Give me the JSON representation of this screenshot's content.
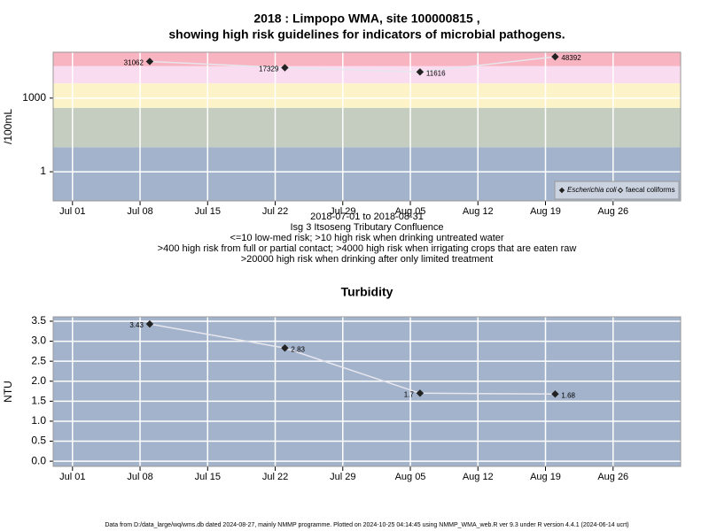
{
  "chart_data": [
    {
      "type": "line",
      "title": [
        "2018 : Limpopo WMA, site 100000815 ,",
        "showing high risk guidelines for indicators of microbial pathogens."
      ],
      "ylabel": "/100mL",
      "log_y": true,
      "ylim": [
        0.065,
        74000
      ],
      "yticks": [
        1,
        1000
      ],
      "xlim": [
        "2018-06-29",
        "2018-09-02"
      ],
      "xticks": [
        {
          "value": "2018-07-01",
          "label": "Jul 01"
        },
        {
          "value": "2018-07-08",
          "label": "Jul 08"
        },
        {
          "value": "2018-07-15",
          "label": "Jul 15"
        },
        {
          "value": "2018-07-22",
          "label": "Jul 22"
        },
        {
          "value": "2018-07-29",
          "label": "Jul 29"
        },
        {
          "value": "2018-08-05",
          "label": "Aug 05"
        },
        {
          "value": "2018-08-12",
          "label": "Aug 12"
        },
        {
          "value": "2018-08-19",
          "label": "Aug 19"
        },
        {
          "value": "2018-08-26",
          "label": "Aug 26"
        }
      ],
      "x": [
        "2018-07-09",
        "2018-07-23",
        "2018-08-06",
        "2018-08-20"
      ],
      "thresholds": [
        10,
        400,
        4000,
        20000
      ],
      "band_colors": [
        "#a3b3cc",
        "#c4cdc0",
        "#fcf4c8",
        "#f9dcf0",
        "#f8b4c0"
      ],
      "grid": true,
      "line_color": "#e6e6ee",
      "legend": "bottom-right",
      "series": [
        {
          "name": "Escherichia coli",
          "color": "#222222",
          "filled": true,
          "values": [
            31062,
            17329,
            11616,
            48392
          ]
        },
        {
          "name": "faecal coliforms",
          "color": "#222222",
          "filled": false,
          "values": [
            null,
            null,
            null,
            null
          ]
        }
      ],
      "notes": [
        "2018-07-01 to 2018-08-31",
        "Isg 3 Itsoseng Tributary Confluence",
        "<=10 low-med risk; >10 high risk when drinking untreated water",
        ">400 high risk from full or partial contact; >4000 high risk when irrigating crops that are eaten raw",
        ">20000 high risk when drinking after only limited treatment"
      ]
    },
    {
      "type": "line",
      "title": [
        "Turbidity"
      ],
      "ylabel": "NTU",
      "log_y": false,
      "ylim": [
        -0.13,
        3.61
      ],
      "yticks": [
        {
          "value": 0,
          "label": "0.0"
        },
        0.5,
        {
          "value": 1,
          "label": "1.0"
        },
        1.5,
        {
          "value": 2,
          "label": "2.0"
        },
        2.5,
        {
          "value": 3,
          "label": "3.0"
        },
        3.5
      ],
      "xlim": [
        "2018-06-29",
        "2018-09-02"
      ],
      "xticks": [
        {
          "value": "2018-07-01",
          "label": "Jul 01"
        },
        {
          "value": "2018-07-08",
          "label": "Jul 08"
        },
        {
          "value": "2018-07-15",
          "label": "Jul 15"
        },
        {
          "value": "2018-07-22",
          "label": "Jul 22"
        },
        {
          "value": "2018-07-29",
          "label": "Jul 29"
        },
        {
          "value": "2018-08-05",
          "label": "Aug 05"
        },
        {
          "value": "2018-08-12",
          "label": "Aug 12"
        },
        {
          "value": "2018-08-19",
          "label": "Aug 19"
        },
        {
          "value": "2018-08-26",
          "label": "Aug 26"
        }
      ],
      "x": [
        "2018-07-09",
        "2018-07-23",
        "2018-08-06",
        "2018-08-20"
      ],
      "background": "#a3b3cc",
      "grid": true,
      "line_color": "#e6e6ee",
      "series": [
        {
          "name": "Turbidity",
          "color": "#222222",
          "filled": true,
          "values": [
            3.43,
            2.83,
            1.7,
            1.68
          ]
        }
      ]
    }
  ],
  "footer": "Data from D:/data_large/wq/wms.db dated 2024-08-27, mainly NMMP programme. Plotted on 2024-10-25 04:14:45 using NMMP_WMA_web.R ver 9.3 under R version 4.4.1 (2024-06-14 ucrt)"
}
